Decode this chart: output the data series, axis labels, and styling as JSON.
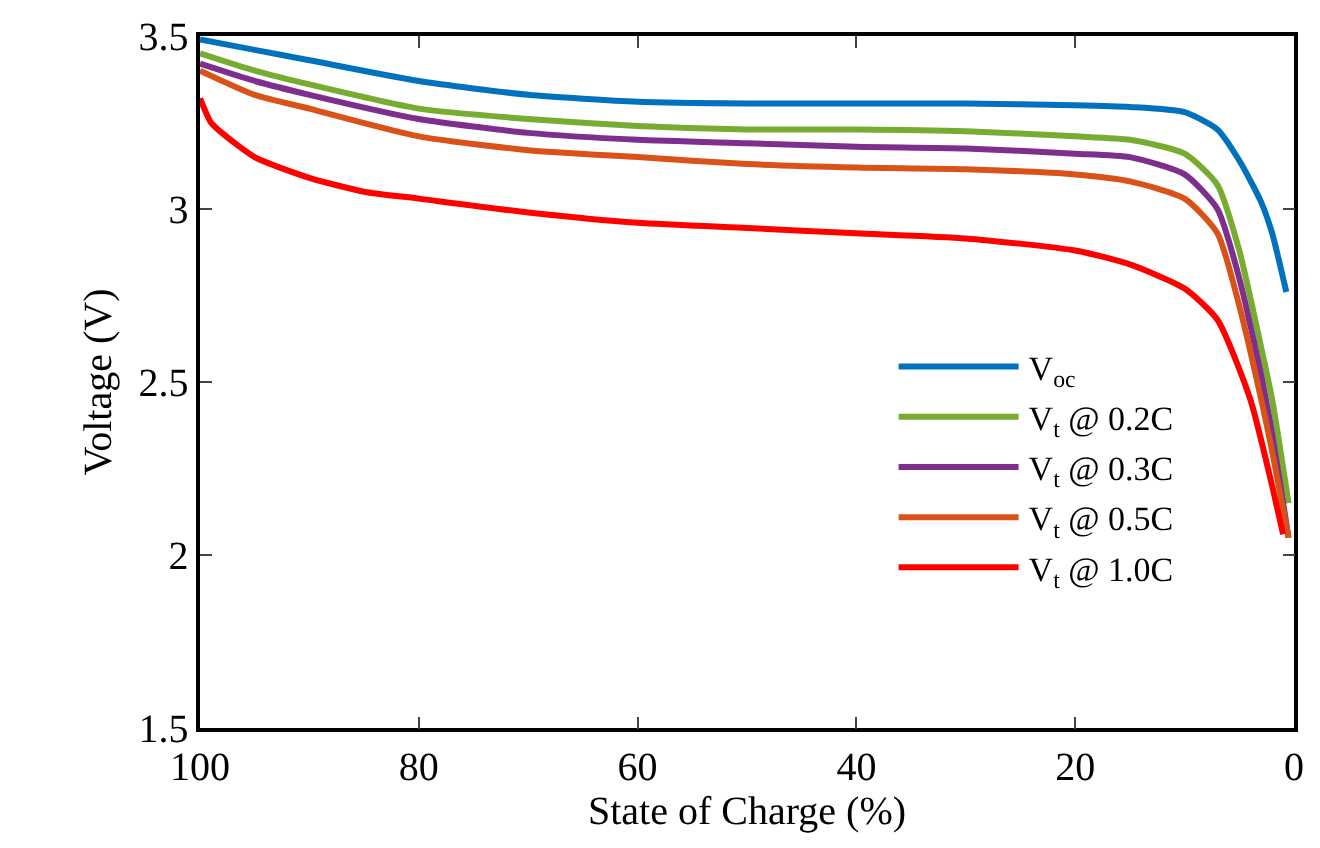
{
  "chart_data": {
    "type": "line",
    "xlabel": "State of Charge (%)",
    "ylabel": "Voltage (V)",
    "xlim": [
      100,
      0
    ],
    "xticks": [
      100,
      80,
      60,
      40,
      20,
      0
    ],
    "ylim": [
      1.5,
      3.5
    ],
    "yticks": [
      1.5,
      2,
      2.5,
      3,
      3.5
    ],
    "legend": "bottom right",
    "marker": "none",
    "line_style": "solid",
    "series": [
      {
        "name": "V$_{oc}$",
        "color": "#0072bd",
        "x": [
          100,
          95,
          90,
          80,
          70,
          60,
          50,
          40,
          30,
          20,
          15,
          10,
          7,
          5,
          3,
          2,
          0.7
        ],
        "values": [
          3.49,
          3.46,
          3.43,
          3.37,
          3.33,
          3.31,
          3.305,
          3.305,
          3.305,
          3.3,
          3.295,
          3.28,
          3.23,
          3.14,
          3.02,
          2.93,
          2.76
        ]
      },
      {
        "name": "V$_{t}$ @ 0.2C",
        "color": "#77ac30",
        "x": [
          100,
          95,
          90,
          80,
          70,
          60,
          50,
          40,
          30,
          20,
          15,
          10,
          7,
          5,
          3,
          2,
          0.5
        ],
        "values": [
          3.45,
          3.4,
          3.36,
          3.29,
          3.26,
          3.24,
          3.23,
          3.23,
          3.225,
          3.21,
          3.2,
          3.16,
          3.07,
          2.88,
          2.6,
          2.45,
          2.15
        ]
      },
      {
        "name": "V$_{t}$ @ 0.3C",
        "color": "#7e2f8e",
        "x": [
          100,
          95,
          90,
          80,
          70,
          60,
          50,
          40,
          30,
          20,
          15,
          10,
          7,
          5,
          3,
          2,
          0.5
        ],
        "values": [
          3.42,
          3.37,
          3.33,
          3.26,
          3.22,
          3.2,
          3.19,
          3.18,
          3.175,
          3.16,
          3.15,
          3.1,
          3.0,
          2.8,
          2.52,
          2.35,
          2.05
        ]
      },
      {
        "name": "V$_{t}$ @ 0.5C",
        "color": "#d95319",
        "x": [
          100,
          95,
          90,
          80,
          70,
          60,
          50,
          40,
          30,
          20,
          15,
          10,
          7,
          5,
          3,
          2,
          0.5
        ],
        "values": [
          3.4,
          3.33,
          3.29,
          3.21,
          3.17,
          3.15,
          3.13,
          3.12,
          3.115,
          3.1,
          3.08,
          3.03,
          2.93,
          2.72,
          2.45,
          2.3,
          2.05
        ]
      },
      {
        "name": "V$_{t}$ @ 1.0C",
        "color": "#ff0000",
        "x": [
          100,
          99,
          98,
          95,
          90,
          85,
          80,
          70,
          60,
          50,
          40,
          30,
          20,
          15,
          10,
          7,
          4,
          2,
          1
        ],
        "values": [
          3.32,
          3.25,
          3.22,
          3.15,
          3.09,
          3.05,
          3.03,
          2.99,
          2.96,
          2.945,
          2.93,
          2.915,
          2.88,
          2.84,
          2.77,
          2.68,
          2.45,
          2.2,
          2.06
        ]
      }
    ]
  }
}
